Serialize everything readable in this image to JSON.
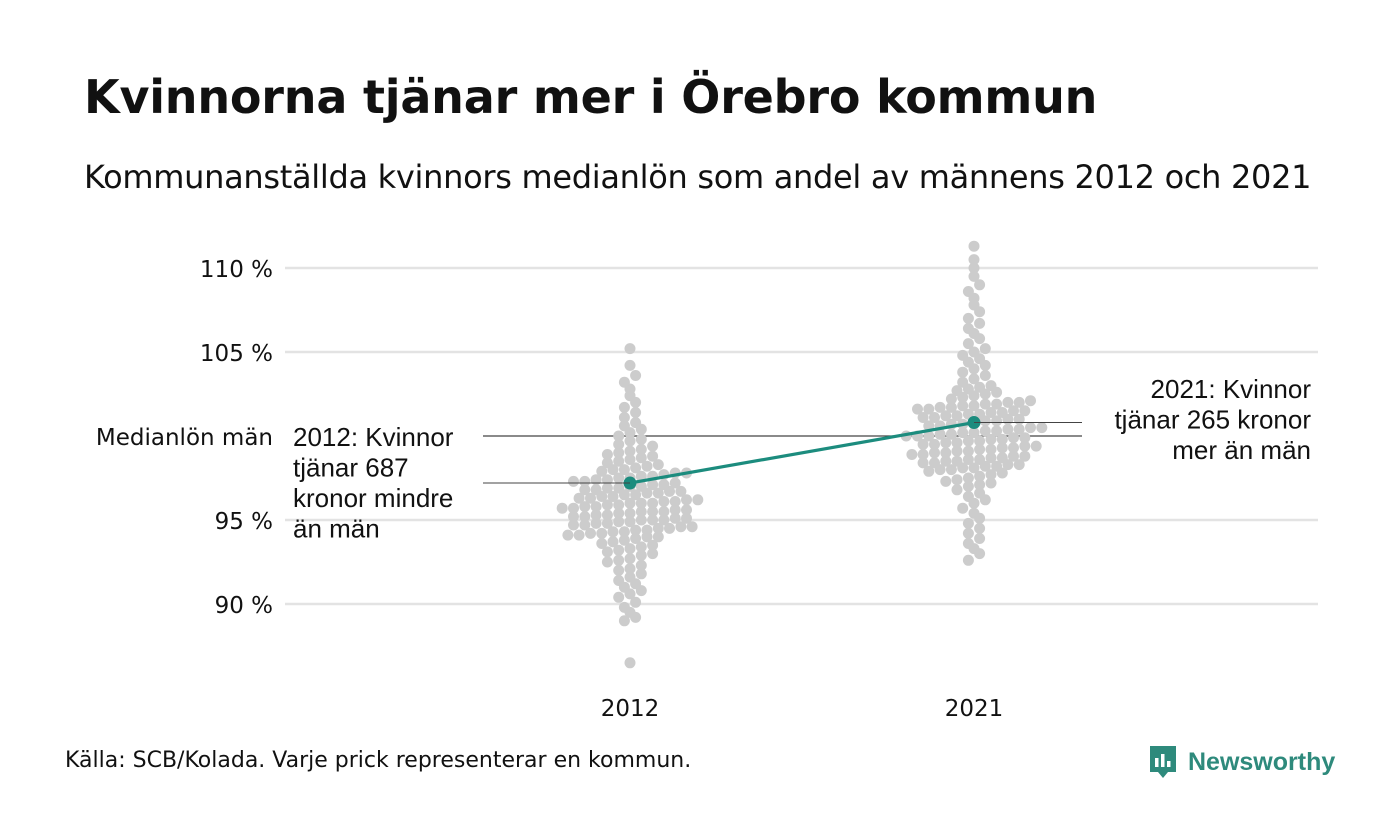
{
  "title": "Kvinnorna tjänar mer i Örebro kommun",
  "subtitle": "Kommunanställda kvinnors medianlön som andel av männens 2012 och 2021",
  "source": "Källa: SCB/Kolada. Varje prick representerar en kommun.",
  "brand": {
    "name": "Newsworthy",
    "icon": "newsworthy-logo-icon"
  },
  "colors": {
    "dots": "#cccccc",
    "highlight": "#1c8c7e",
    "grid": "#e3e3e3",
    "reference": "#444444",
    "text": "#111111"
  },
  "chart_data": {
    "type": "scatter",
    "subtype": "beeswarm",
    "categories": [
      "2012",
      "2021"
    ],
    "ylim": [
      86,
      111.5
    ],
    "yticks": [
      {
        "value": 90,
        "label": "90 %"
      },
      {
        "value": 95,
        "label": "95 %"
      },
      {
        "value": 105,
        "label": "105 %"
      },
      {
        "value": 110,
        "label": "110 %"
      }
    ],
    "reference_line": {
      "value": 100,
      "label": "Medianlön män"
    },
    "grid": true,
    "highlight": {
      "values": [
        97.2,
        100.8
      ],
      "annotations": [
        "2012: Kvinnor\ntjänar 687\nkronor mindre\nän män",
        "2021: Kvinnor\ntjänar 265 kronor\nmer än män"
      ]
    },
    "series": [
      {
        "category": "2012",
        "values": [
          86.5,
          89.0,
          89.2,
          89.5,
          89.8,
          90.1,
          90.4,
          90.6,
          90.8,
          91.0,
          91.2,
          91.4,
          91.6,
          91.8,
          92.0,
          92.1,
          92.3,
          92.5,
          92.6,
          92.7,
          92.9,
          93.0,
          93.1,
          93.2,
          93.3,
          93.4,
          93.5,
          93.6,
          93.7,
          93.8,
          93.9,
          94.0,
          94.0,
          94.1,
          94.1,
          94.2,
          94.2,
          94.3,
          94.3,
          94.4,
          94.4,
          94.5,
          94.5,
          94.6,
          94.6,
          94.7,
          94.7,
          94.8,
          94.8,
          94.9,
          94.9,
          95.0,
          95.0,
          95.0,
          95.1,
          95.1,
          95.2,
          95.2,
          95.3,
          95.3,
          95.4,
          95.4,
          95.5,
          95.5,
          95.5,
          95.6,
          95.6,
          95.7,
          95.7,
          95.8,
          95.8,
          95.9,
          95.9,
          96.0,
          96.0,
          96.0,
          96.1,
          96.1,
          96.2,
          96.2,
          96.3,
          96.3,
          96.4,
          96.4,
          96.5,
          96.5,
          96.6,
          96.6,
          96.7,
          96.7,
          96.8,
          96.8,
          96.9,
          96.9,
          97.0,
          97.0,
          97.1,
          97.1,
          97.2,
          97.3,
          97.3,
          97.4,
          97.4,
          97.5,
          97.5,
          97.6,
          97.6,
          97.7,
          97.8,
          97.8,
          97.9,
          98.0,
          98.0,
          98.1,
          98.2,
          98.3,
          98.4,
          98.5,
          98.6,
          98.7,
          98.8,
          98.9,
          99.0,
          99.1,
          99.2,
          99.4,
          99.5,
          99.7,
          99.8,
          100.0,
          100.2,
          100.4,
          100.6,
          100.8,
          101.1,
          101.4,
          101.7,
          102.0,
          102.4,
          102.8,
          103.2,
          103.6,
          104.2,
          105.2
        ],
        "highlight_value": 97.2
      },
      {
        "category": "2021",
        "values": [
          92.6,
          93.0,
          93.3,
          93.6,
          93.9,
          94.2,
          94.5,
          94.8,
          95.1,
          95.4,
          95.7,
          96.0,
          96.2,
          96.4,
          96.6,
          96.8,
          97.0,
          97.1,
          97.2,
          97.3,
          97.4,
          97.5,
          97.6,
          97.7,
          97.8,
          97.9,
          98.0,
          98.0,
          98.1,
          98.1,
          98.2,
          98.2,
          98.3,
          98.3,
          98.4,
          98.4,
          98.5,
          98.5,
          98.6,
          98.6,
          98.7,
          98.7,
          98.8,
          98.8,
          98.9,
          98.9,
          99.0,
          99.0,
          99.1,
          99.1,
          99.2,
          99.2,
          99.3,
          99.3,
          99.4,
          99.4,
          99.5,
          99.5,
          99.6,
          99.6,
          99.7,
          99.7,
          99.8,
          99.8,
          99.9,
          99.9,
          100.0,
          100.0,
          100.0,
          100.1,
          100.1,
          100.2,
          100.2,
          100.3,
          100.3,
          100.4,
          100.4,
          100.5,
          100.5,
          100.6,
          100.6,
          100.7,
          100.7,
          100.8,
          100.9,
          100.9,
          101.0,
          101.0,
          101.1,
          101.1,
          101.2,
          101.2,
          101.3,
          101.3,
          101.4,
          101.4,
          101.5,
          101.5,
          101.6,
          101.6,
          101.7,
          101.7,
          101.8,
          101.8,
          101.9,
          101.9,
          102.0,
          102.0,
          102.1,
          102.2,
          102.3,
          102.4,
          102.5,
          102.6,
          102.7,
          102.8,
          102.9,
          103.0,
          103.2,
          103.4,
          103.6,
          103.8,
          104.0,
          104.2,
          104.4,
          104.6,
          104.8,
          105.0,
          105.2,
          105.5,
          105.8,
          106.1,
          106.4,
          106.7,
          107.0,
          107.4,
          107.8,
          108.2,
          108.6,
          109.0,
          109.5,
          110.0,
          110.5,
          111.3
        ],
        "highlight_value": 100.8
      }
    ]
  }
}
